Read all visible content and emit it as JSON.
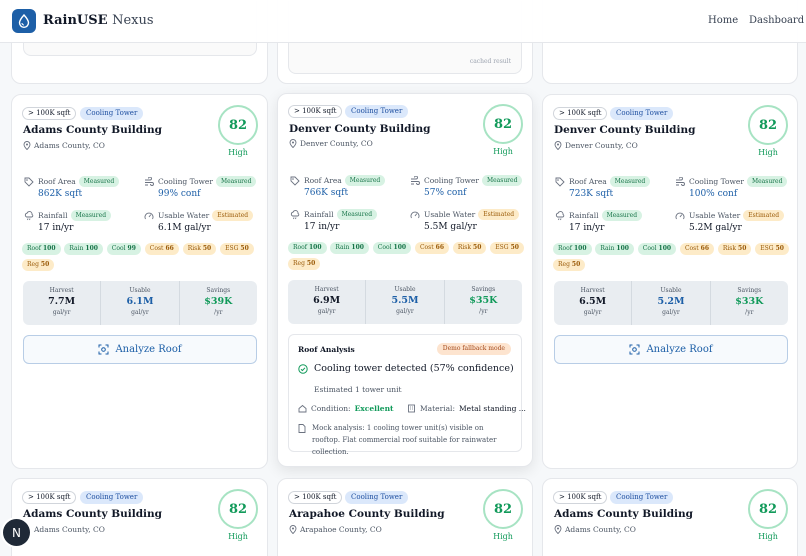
{
  "header": {
    "brand": "RainUSE",
    "brand_sub": "Nexus",
    "nav": [
      "Home",
      "Dashboard"
    ]
  },
  "top_stub": {
    "cached_label": "cached result"
  },
  "cards": [
    {
      "size": "> 100K sqft",
      "type": "Cooling Tower",
      "name": "Adams County Building",
      "location": "Adams County, CO",
      "score": "82",
      "score_label": "High",
      "metrics": {
        "roof_area": {
          "label": "Roof Area",
          "badge": "Measured",
          "value": "862K sqft"
        },
        "cooling_tower": {
          "label": "Cooling Tower",
          "badge": "Measured",
          "value": "99% conf"
        },
        "rainfall": {
          "label": "Rainfall",
          "badge": "Measured",
          "value": "17 in/yr"
        },
        "usable_water": {
          "label": "Usable Water",
          "badge": "Estimated",
          "value": "6.1M gal/yr"
        }
      },
      "chips": [
        {
          "label": "Roof",
          "value": "100"
        },
        {
          "label": "Rain",
          "value": "100"
        },
        {
          "label": "Cool",
          "value": "99"
        },
        {
          "label": "Cost",
          "value": "66"
        },
        {
          "label": "Risk",
          "value": "50"
        },
        {
          "label": "ESG",
          "value": "50"
        },
        {
          "label": "Reg",
          "value": "50"
        }
      ],
      "stats": [
        {
          "label": "Harvest",
          "value": "7.7M",
          "unit": "gal/yr"
        },
        {
          "label": "Usable",
          "value": "6.1M",
          "unit": "gal/yr"
        },
        {
          "label": "Savings",
          "value": "$39K",
          "unit": "/yr"
        }
      ],
      "action": "Analyze Roof"
    },
    {
      "size": "> 100K sqft",
      "type": "Cooling Tower",
      "name": "Denver County Building",
      "location": "Denver County, CO",
      "score": "82",
      "score_label": "High",
      "metrics": {
        "roof_area": {
          "label": "Roof Area",
          "badge": "Measured",
          "value": "766K sqft"
        },
        "cooling_tower": {
          "label": "Cooling Tower",
          "badge": "Measured",
          "value": "57% conf"
        },
        "rainfall": {
          "label": "Rainfall",
          "badge": "Measured",
          "value": "17 in/yr"
        },
        "usable_water": {
          "label": "Usable Water",
          "badge": "Estimated",
          "value": "5.5M gal/yr"
        }
      },
      "chips": [
        {
          "label": "Roof",
          "value": "100"
        },
        {
          "label": "Rain",
          "value": "100"
        },
        {
          "label": "Cool",
          "value": "100"
        },
        {
          "label": "Cost",
          "value": "66"
        },
        {
          "label": "Risk",
          "value": "50"
        },
        {
          "label": "ESG",
          "value": "50"
        },
        {
          "label": "Reg",
          "value": "50"
        }
      ],
      "stats": [
        {
          "label": "Harvest",
          "value": "6.9M",
          "unit": "gal/yr"
        },
        {
          "label": "Usable",
          "value": "5.5M",
          "unit": "gal/yr"
        },
        {
          "label": "Savings",
          "value": "$35K",
          "unit": "/yr"
        }
      ],
      "analysis": {
        "title": "Roof Analysis",
        "mode": "Demo fallback mode",
        "detection": "Cooling tower detected (57% confidence)",
        "estimate": "Estimated 1 tower unit",
        "condition_label": "Condition:",
        "condition": "Excellent",
        "material_label": "Material:",
        "material": "Metal standing ...",
        "note": "Mock analysis: 1 cooling tower unit(s) visible on rooftop. Flat commercial roof suitable for rainwater collection."
      }
    },
    {
      "size": "> 100K sqft",
      "type": "Cooling Tower",
      "name": "Denver County Building",
      "location": "Denver County, CO",
      "score": "82",
      "score_label": "High",
      "metrics": {
        "roof_area": {
          "label": "Roof Area",
          "badge": "Measured",
          "value": "723K sqft"
        },
        "cooling_tower": {
          "label": "Cooling Tower",
          "badge": "Measured",
          "value": "100% conf"
        },
        "rainfall": {
          "label": "Rainfall",
          "badge": "Measured",
          "value": "17 in/yr"
        },
        "usable_water": {
          "label": "Usable Water",
          "badge": "Estimated",
          "value": "5.2M gal/yr"
        }
      },
      "chips": [
        {
          "label": "Roof",
          "value": "100"
        },
        {
          "label": "Rain",
          "value": "100"
        },
        {
          "label": "Cool",
          "value": "100"
        },
        {
          "label": "Cost",
          "value": "66"
        },
        {
          "label": "Risk",
          "value": "50"
        },
        {
          "label": "ESG",
          "value": "50"
        },
        {
          "label": "Reg",
          "value": "50"
        }
      ],
      "stats": [
        {
          "label": "Harvest",
          "value": "6.5M",
          "unit": "gal/yr"
        },
        {
          "label": "Usable",
          "value": "5.2M",
          "unit": "gal/yr"
        },
        {
          "label": "Savings",
          "value": "$33K",
          "unit": "/yr"
        }
      ],
      "action": "Analyze Roof"
    },
    {
      "size": "> 100K sqft",
      "type": "Cooling Tower",
      "name": "Adams County Building",
      "location": "Adams County, CO",
      "score": "82",
      "score_label": "High"
    },
    {
      "size": "> 100K sqft",
      "type": "Cooling Tower",
      "name": "Arapahoe County Building",
      "location": "Arapahoe County, CO",
      "score": "82",
      "score_label": "High"
    },
    {
      "size": "> 100K sqft",
      "type": "Cooling Tower",
      "name": "Adams County Building",
      "location": "Adams County, CO",
      "score": "82",
      "score_label": "High"
    }
  ],
  "avatar": {
    "initial": "N"
  },
  "colors": {
    "primary": "#1d5fa7",
    "success": "#119a5a",
    "tag_blue": "#dbe8fb",
    "measured": "#d7f2e3",
    "estimated": "#fdebc8"
  }
}
